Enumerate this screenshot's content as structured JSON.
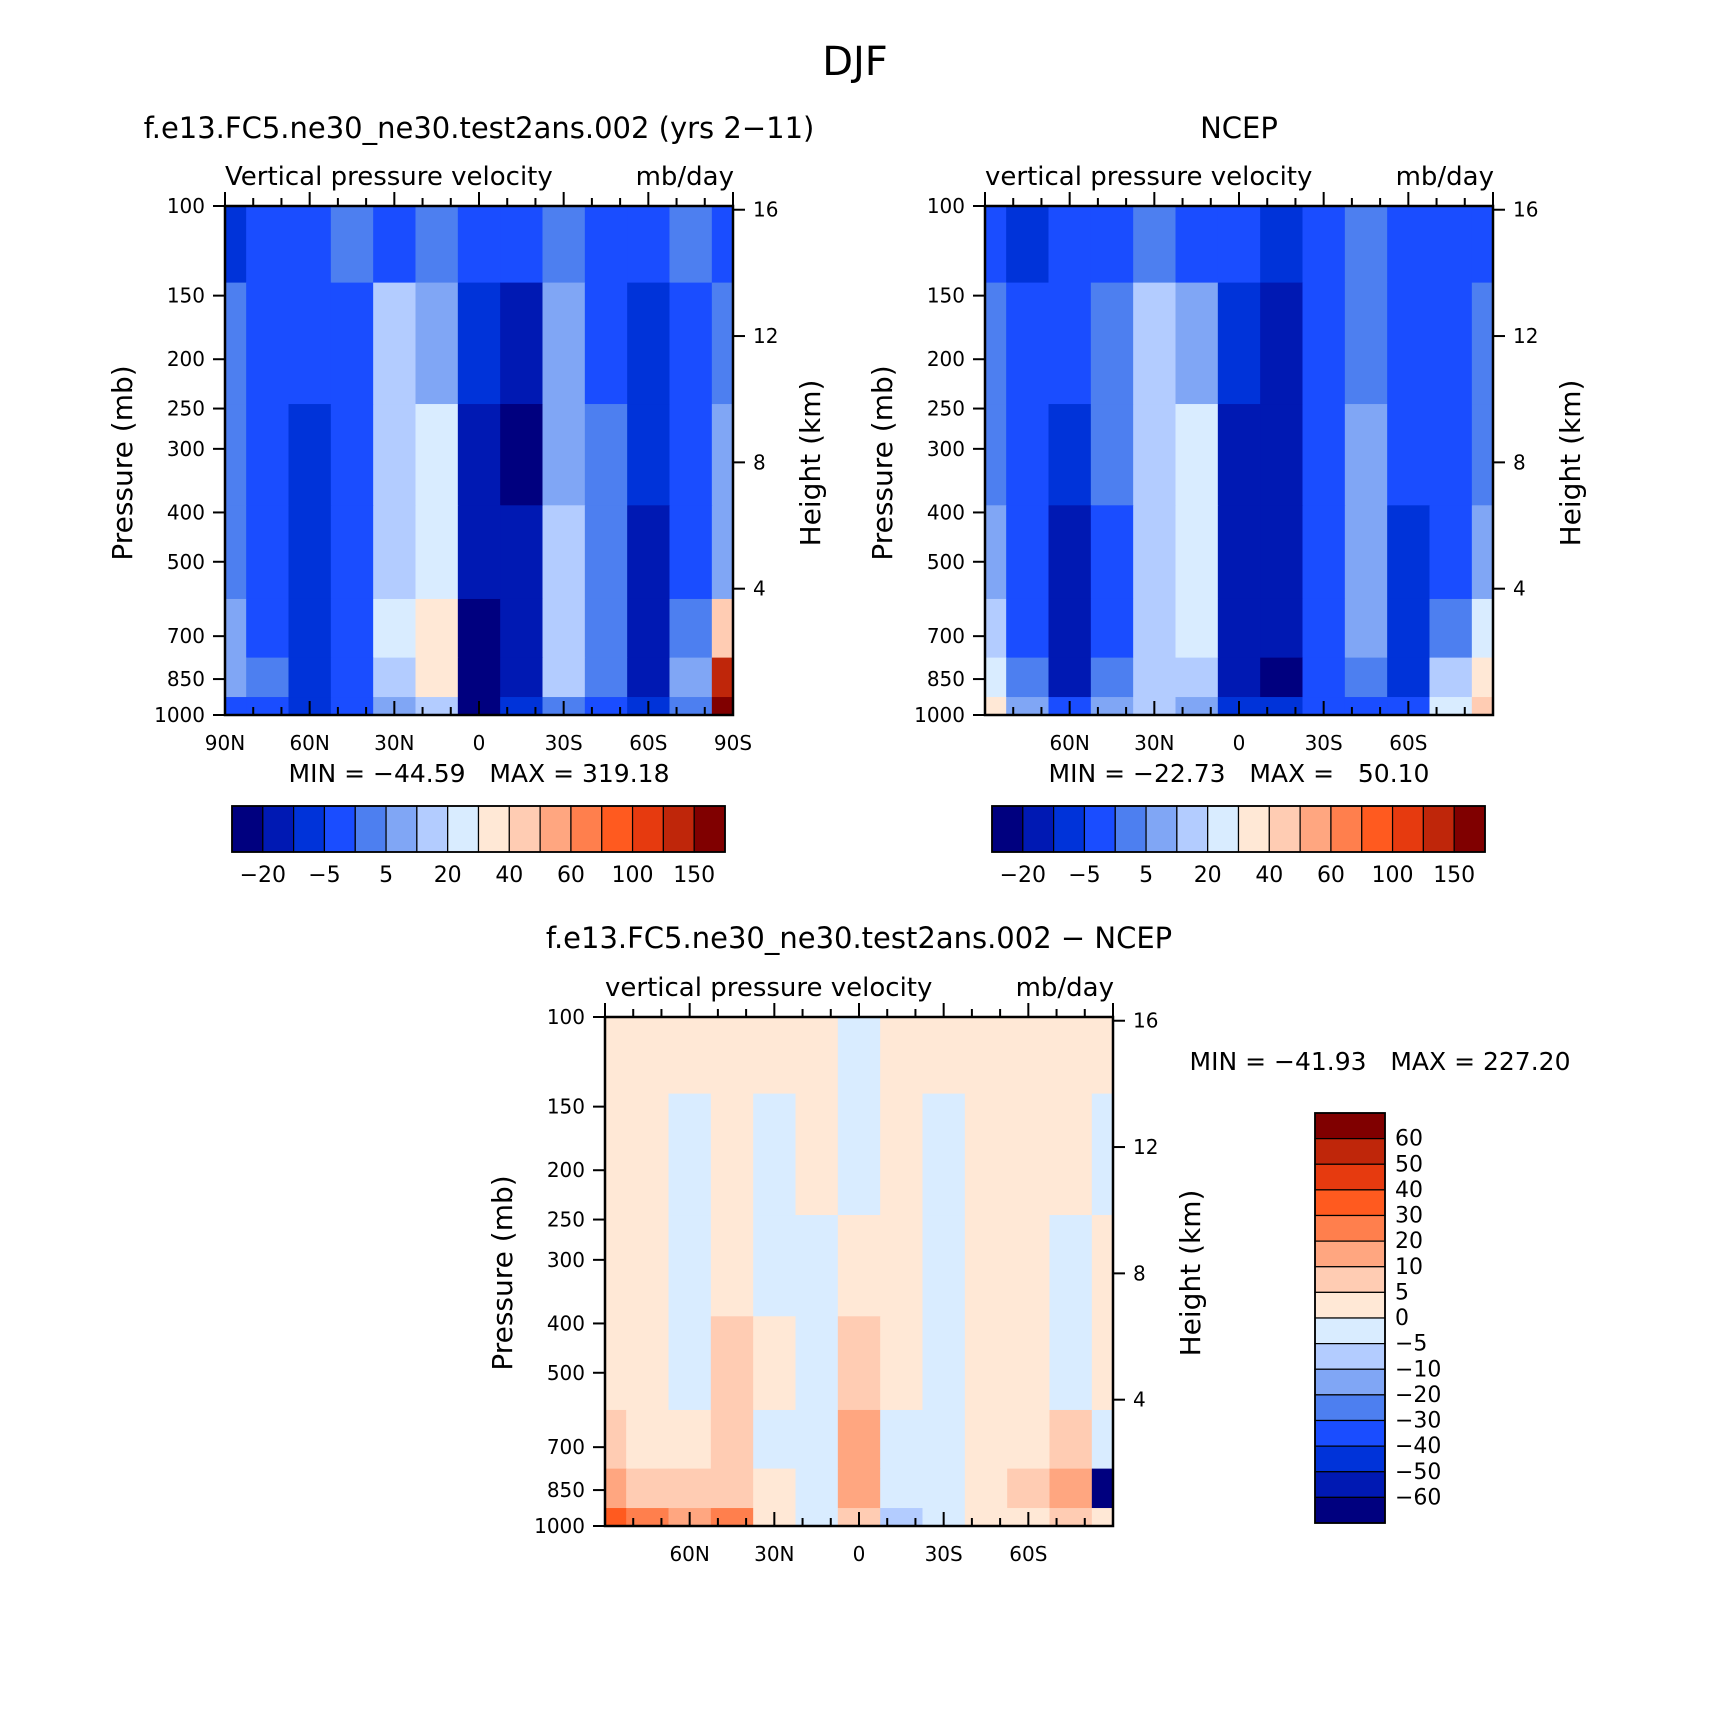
{
  "figure_title": "DJF",
  "left_label_top": "Pressure (mb)",
  "right_label_top": "Height (km)",
  "chart_data": [
    {
      "type": "heatmap",
      "id": "model",
      "title": "f.e13.FC5.ne30_ne30.test2ans.002 (yrs 2−11)",
      "subtitle_left": "Vertical pressure velocity",
      "subtitle_right": "mb/day",
      "ylabel": "Pressure (mb)",
      "y2label": "Height (km)",
      "ylim": [
        1000,
        100
      ],
      "yscale": "log",
      "yticks": [
        100,
        150,
        200,
        250,
        300,
        400,
        500,
        700,
        850,
        1000
      ],
      "y2ticks": [
        "16",
        "12",
        "8",
        "4"
      ],
      "xlim": [
        90,
        -90
      ],
      "xticks": [
        "90N",
        "60N",
        "30N",
        "0",
        "30S",
        "60S",
        "90S"
      ],
      "stats": "MIN = −44.59   MAX = 319.18",
      "colorbar": {
        "orientation": "horizontal",
        "tick_labels": [
          "−20",
          "−5",
          "5",
          "20",
          "40",
          "60",
          "100",
          "150"
        ],
        "colors": [
          "#00007f",
          "#0019b3",
          "#0033d9",
          "#1a4dff",
          "#4d7ff0",
          "#80a6f5",
          "#b3ccff",
          "#d9ecff",
          "#ffe8d6",
          "#ffccb3",
          "#ffa680",
          "#ff7f4d",
          "#ff5a1f",
          "#e63a0f",
          "#bf260a",
          "#800000"
        ]
      },
      "levels": {
        "lat": [
          90,
          75,
          60,
          45,
          30,
          15,
          0,
          -15,
          -30,
          -45,
          -60,
          -75,
          -90
        ],
        "p": [
          100,
          200,
          300,
          500,
          700,
          850,
          1000
        ],
        "values": [
          [
            2,
            3,
            3,
            4,
            3,
            4,
            3,
            3,
            4,
            3,
            3,
            4,
            3
          ],
          [
            4,
            3,
            3,
            3,
            6,
            5,
            2,
            1,
            5,
            3,
            2,
            3,
            4
          ],
          [
            4,
            3,
            2,
            3,
            6,
            7,
            1,
            0,
            5,
            4,
            2,
            3,
            5
          ],
          [
            4,
            3,
            2,
            3,
            6,
            7,
            1,
            1,
            6,
            4,
            1,
            3,
            5
          ],
          [
            5,
            3,
            2,
            3,
            7,
            8,
            0,
            1,
            6,
            4,
            1,
            4,
            9
          ],
          [
            5,
            4,
            2,
            3,
            6,
            8,
            0,
            1,
            6,
            4,
            1,
            5,
            14
          ],
          [
            3,
            3,
            2,
            3,
            5,
            6,
            0,
            2,
            4,
            3,
            2,
            4,
            15
          ]
        ]
      }
    },
    {
      "type": "heatmap",
      "id": "ncep",
      "title": "NCEP",
      "subtitle_left": "vertical pressure velocity",
      "subtitle_right": "mb/day",
      "ylabel": "Pressure (mb)",
      "y2label": "Height (km)",
      "ylim": [
        1000,
        100
      ],
      "yscale": "log",
      "yticks": [
        100,
        150,
        200,
        250,
        300,
        400,
        500,
        700,
        850,
        1000
      ],
      "y2ticks": [
        "16",
        "12",
        "8",
        "4"
      ],
      "xlim": [
        90,
        -90
      ],
      "xticks": [
        "60N",
        "30N",
        "0",
        "30S",
        "60S"
      ],
      "stats": "MIN = −22.73   MAX =   50.10",
      "colorbar": {
        "orientation": "horizontal",
        "tick_labels": [
          "−20",
          "−5",
          "5",
          "20",
          "40",
          "60",
          "100",
          "150"
        ],
        "colors": [
          "#00007f",
          "#0019b3",
          "#0033d9",
          "#1a4dff",
          "#4d7ff0",
          "#80a6f5",
          "#b3ccff",
          "#d9ecff",
          "#ffe8d6",
          "#ffccb3",
          "#ffa680",
          "#ff7f4d",
          "#ff5a1f",
          "#e63a0f",
          "#bf260a",
          "#800000"
        ]
      },
      "levels": {
        "lat": [
          90,
          75,
          60,
          45,
          30,
          15,
          0,
          -15,
          -30,
          -45,
          -60,
          -75,
          -90
        ],
        "p": [
          100,
          200,
          300,
          500,
          700,
          850,
          1000
        ],
        "values": [
          [
            3,
            2,
            3,
            3,
            4,
            3,
            3,
            2,
            3,
            4,
            3,
            3,
            3
          ],
          [
            4,
            3,
            3,
            4,
            6,
            5,
            2,
            1,
            3,
            4,
            3,
            3,
            4
          ],
          [
            4,
            3,
            2,
            4,
            6,
            7,
            1,
            1,
            3,
            5,
            3,
            3,
            4
          ],
          [
            5,
            3,
            1,
            3,
            6,
            7,
            1,
            1,
            3,
            5,
            2,
            3,
            5
          ],
          [
            6,
            3,
            1,
            3,
            6,
            7,
            1,
            1,
            3,
            5,
            2,
            4,
            7
          ],
          [
            7,
            4,
            1,
            4,
            6,
            6,
            1,
            0,
            3,
            4,
            2,
            6,
            8
          ],
          [
            8,
            5,
            3,
            5,
            6,
            5,
            2,
            2,
            3,
            3,
            3,
            7,
            9
          ]
        ]
      }
    },
    {
      "type": "heatmap",
      "id": "difference",
      "title": "f.e13.FC5.ne30_ne30.test2ans.002 − NCEP",
      "subtitle_left": "vertical pressure velocity",
      "subtitle_right": "mb/day",
      "ylabel": "Pressure (mb)",
      "y2label": "Height (km)",
      "ylim": [
        1000,
        100
      ],
      "yscale": "log",
      "yticks": [
        100,
        150,
        200,
        250,
        300,
        400,
        500,
        700,
        850,
        1000
      ],
      "y2ticks": [
        "16",
        "12",
        "8",
        "4"
      ],
      "xlim": [
        90,
        -90
      ],
      "xticks": [
        "60N",
        "30N",
        "0",
        "30S",
        "60S"
      ],
      "stats": "MIN = −41.93   MAX = 227.20",
      "colorbar": {
        "orientation": "vertical",
        "tick_labels": [
          "60",
          "50",
          "40",
          "30",
          "20",
          "10",
          "5",
          "0",
          "−5",
          "−10",
          "−20",
          "−30",
          "−40",
          "−50",
          "−60"
        ],
        "colors": [
          "#800000",
          "#bf260a",
          "#e63a0f",
          "#ff5a1f",
          "#ff7f4d",
          "#ffa680",
          "#ffccb3",
          "#ffe8d6",
          "#d9ecff",
          "#b3ccff",
          "#80a6f5",
          "#4d7ff0",
          "#1a4dff",
          "#0033d9",
          "#0019b3",
          "#00007f"
        ]
      },
      "levels": {
        "lat": [
          90,
          75,
          60,
          45,
          30,
          15,
          0,
          -15,
          -30,
          -45,
          -60,
          -75,
          -90
        ],
        "p": [
          100,
          200,
          300,
          500,
          700,
          850,
          1000
        ],
        "values": [
          [
            7,
            7,
            7,
            7,
            7,
            7,
            8,
            7,
            7,
            7,
            7,
            7,
            7
          ],
          [
            7,
            7,
            8,
            7,
            8,
            7,
            8,
            7,
            8,
            7,
            7,
            7,
            8
          ],
          [
            7,
            7,
            8,
            7,
            8,
            8,
            7,
            7,
            8,
            7,
            7,
            8,
            7
          ],
          [
            7,
            7,
            8,
            6,
            7,
            8,
            6,
            7,
            8,
            7,
            7,
            8,
            7
          ],
          [
            6,
            7,
            7,
            6,
            8,
            8,
            5,
            8,
            8,
            7,
            7,
            6,
            8
          ],
          [
            5,
            6,
            6,
            6,
            7,
            8,
            5,
            8,
            8,
            7,
            6,
            5,
            15
          ],
          [
            3,
            4,
            5,
            4,
            7,
            8,
            6,
            9,
            8,
            7,
            7,
            6,
            7
          ]
        ]
      }
    }
  ]
}
